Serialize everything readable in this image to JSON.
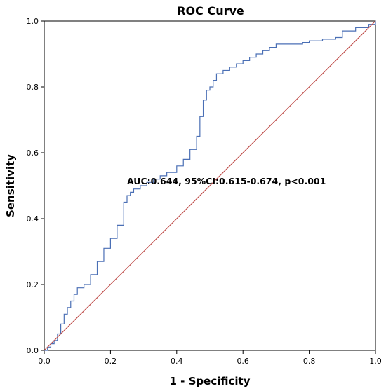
{
  "chart_data": {
    "type": "line",
    "title": "ROC Curve",
    "xlabel": "1 - Specificity",
    "ylabel": "Sensitivity",
    "xlim": [
      0,
      1
    ],
    "ylim": [
      0,
      1
    ],
    "xticks": [
      "0.0",
      "0.2",
      "0.4",
      "0.6",
      "0.8",
      "1.0"
    ],
    "yticks": [
      "0.0",
      "0.2",
      "0.4",
      "0.6",
      "0.8",
      "1.0"
    ],
    "annotation": "AUC:0.644, 95%CI:0.615-0.674, p<0.001",
    "grid": false,
    "series": [
      {
        "color": "#4a6fb5",
        "x": [
          0.0,
          0.01,
          0.02,
          0.03,
          0.04,
          0.05,
          0.06,
          0.07,
          0.08,
          0.09,
          0.1,
          0.12,
          0.14,
          0.16,
          0.18,
          0.2,
          0.22,
          0.24,
          0.25,
          0.26,
          0.27,
          0.29,
          0.31,
          0.33,
          0.35,
          0.37,
          0.4,
          0.42,
          0.44,
          0.46,
          0.47,
          0.48,
          0.49,
          0.5,
          0.51,
          0.52,
          0.54,
          0.56,
          0.58,
          0.6,
          0.62,
          0.64,
          0.66,
          0.68,
          0.7,
          0.72,
          0.74,
          0.76,
          0.78,
          0.8,
          0.84,
          0.88,
          0.9,
          0.94,
          0.98,
          1.0
        ],
        "y": [
          0.0,
          0.01,
          0.02,
          0.03,
          0.05,
          0.08,
          0.11,
          0.13,
          0.15,
          0.17,
          0.19,
          0.2,
          0.23,
          0.27,
          0.31,
          0.34,
          0.38,
          0.45,
          0.47,
          0.48,
          0.49,
          0.5,
          0.51,
          0.52,
          0.53,
          0.54,
          0.56,
          0.58,
          0.61,
          0.65,
          0.71,
          0.76,
          0.79,
          0.8,
          0.82,
          0.84,
          0.85,
          0.86,
          0.87,
          0.88,
          0.89,
          0.9,
          0.91,
          0.92,
          0.93,
          0.93,
          0.93,
          0.93,
          0.935,
          0.94,
          0.945,
          0.95,
          0.97,
          0.98,
          0.99,
          1.0
        ]
      },
      {
        "color": "#c0504d",
        "x": [
          0,
          1
        ],
        "y": [
          0,
          1
        ]
      }
    ]
  }
}
